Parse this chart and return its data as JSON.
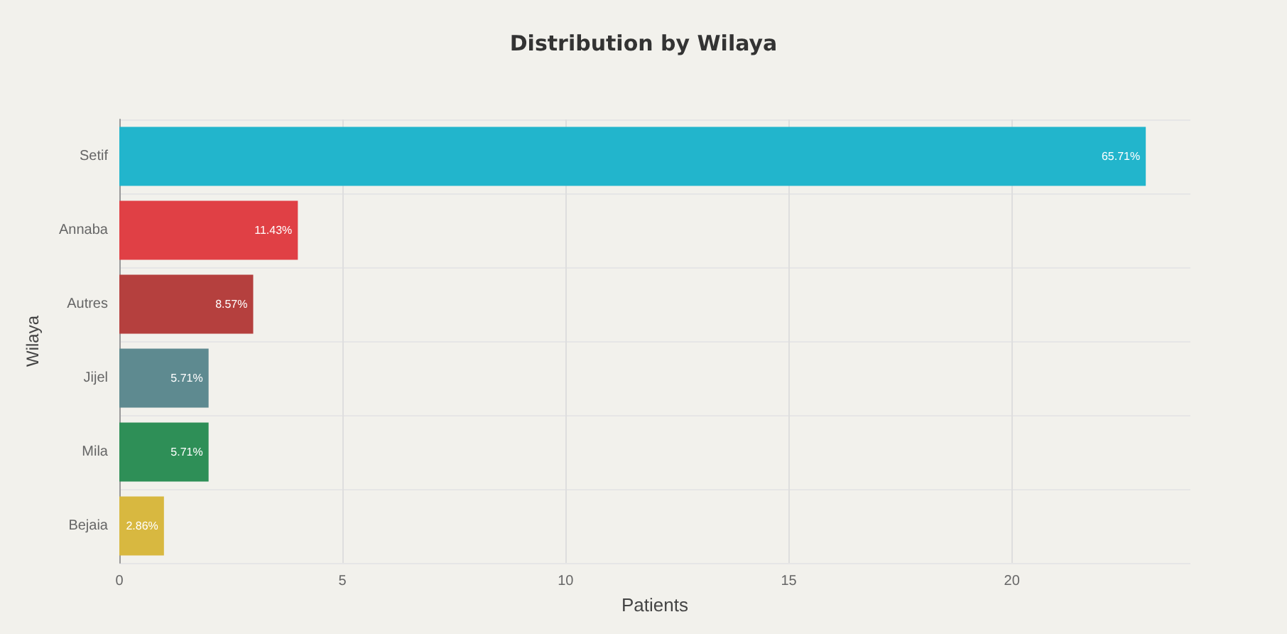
{
  "chart_data": {
    "type": "bar",
    "orientation": "horizontal",
    "title": "Distribution by Wilaya",
    "xlabel": "Patients",
    "ylabel": "Wilaya",
    "categories": [
      "Setif",
      "Annaba",
      "Autres",
      "Jijel",
      "Mila",
      "Bejaia"
    ],
    "values": [
      23,
      4,
      3,
      2,
      2,
      1
    ],
    "colors": [
      "#22b5cc",
      "#e04045",
      "#b5403e",
      "#5e8a90",
      "#2e8f57",
      "#d8b840"
    ],
    "annotations": [
      {
        "text": "65.71%",
        "x": 23,
        "y": "Setif"
      },
      {
        "text": "11.43%",
        "x": 4,
        "y": "Annaba"
      },
      {
        "text": "8.57%",
        "x": 3,
        "y": "Autres"
      },
      {
        "text": "5.71%",
        "x": 2,
        "y": "Jijel"
      },
      {
        "text": "5.71%",
        "x": 2,
        "y": "Mila"
      },
      {
        "text": "2.86%",
        "x": 1,
        "y": "Bejaia"
      }
    ],
    "xlim": [
      0,
      24
    ],
    "xticks": [
      0,
      5,
      10,
      15,
      20
    ],
    "grid": true
  }
}
